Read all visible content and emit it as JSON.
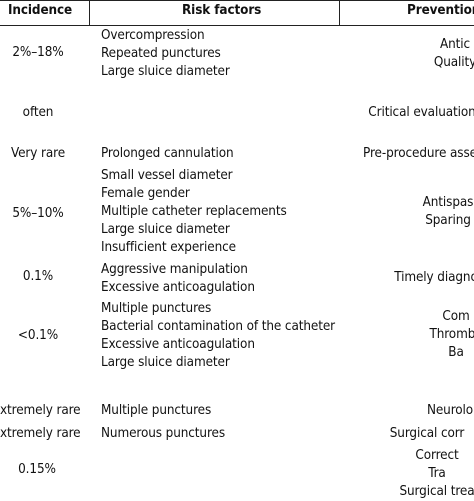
{
  "table": {
    "headers": {
      "incidence": "Incidence",
      "risk_factors": "Risk factors",
      "prevention": "Prevention"
    },
    "rows": [
      {
        "incidence": "2%–18%",
        "risk_factors": [
          "Overcompression",
          "Repeated punctures",
          "Large sluice diameter"
        ],
        "prevention": [
          "Antic",
          "Quality"
        ]
      },
      {
        "incidence": "often",
        "risk_factors": [],
        "prevention": [
          "Critical evaluation"
        ]
      },
      {
        "incidence": "Very rare",
        "risk_factors": [
          "Prolonged cannulation"
        ],
        "prevention": [
          "Pre-procedure asse"
        ]
      },
      {
        "incidence": "5%–10%",
        "risk_factors": [
          "Small vessel diameter",
          "Female gender",
          "Multiple catheter replacements",
          "Large sluice diameter",
          "Insufficient experience"
        ],
        "prevention": [
          "Antispas",
          "Sparing"
        ]
      },
      {
        "incidence": "0.1%",
        "risk_factors": [
          "Aggressive manipulation",
          "Excessive anticoagulation"
        ],
        "prevention": [
          "Timely diagno"
        ]
      },
      {
        "incidence": "<0.1%",
        "risk_factors": [
          "Multiple punctures",
          "Bacterial contamination of the catheter",
          "Excessive anticoagulation",
          "Large sluice diameter"
        ],
        "prevention": [
          "Com",
          "Thrombo",
          "Ba"
        ]
      },
      {
        "incidence": "xtremely rare",
        "risk_factors": [
          "Multiple punctures"
        ],
        "prevention": [
          "Neurolo"
        ]
      },
      {
        "incidence": "xtremely rare",
        "risk_factors": [
          "Numerous punctures"
        ],
        "prevention": [
          "Surgical corr"
        ]
      },
      {
        "incidence": "0.15%",
        "risk_factors": [],
        "prevention": [
          "Correct",
          "Tra",
          "Surgical trea"
        ]
      }
    ]
  }
}
